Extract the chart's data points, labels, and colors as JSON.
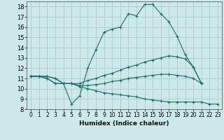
{
  "title": "",
  "xlabel": "Humidex (Indice chaleur)",
  "ylabel": "",
  "xlim": [
    -0.5,
    23.5
  ],
  "ylim": [
    8,
    18.5
  ],
  "xticks": [
    0,
    1,
    2,
    3,
    4,
    5,
    6,
    7,
    8,
    9,
    10,
    11,
    12,
    13,
    14,
    15,
    16,
    17,
    18,
    19,
    20,
    21,
    22,
    23
  ],
  "yticks": [
    8,
    9,
    10,
    11,
    12,
    13,
    14,
    15,
    16,
    17,
    18
  ],
  "background_color": "#cce8e8",
  "grid_color": "#aacccc",
  "line_color": "#1a6b6b",
  "lines": [
    {
      "x": [
        0,
        1,
        2,
        3,
        4,
        5,
        6,
        7,
        8,
        9,
        10,
        11,
        12,
        13,
        14,
        15,
        16,
        17,
        18,
        19,
        20,
        21
      ],
      "y": [
        11.2,
        11.2,
        11.2,
        11.0,
        10.5,
        8.5,
        9.3,
        12.0,
        13.8,
        15.5,
        15.8,
        16.0,
        17.3,
        17.1,
        18.2,
        18.2,
        17.3,
        16.5,
        15.1,
        13.3,
        12.1,
        10.5
      ]
    },
    {
      "x": [
        0,
        1,
        2,
        3,
        4,
        5,
        6,
        7,
        8,
        9,
        10,
        11,
        12,
        13,
        14,
        15,
        16,
        17,
        18,
        19,
        20,
        21,
        22,
        23
      ],
      "y": [
        11.2,
        11.2,
        11.2,
        11.0,
        10.5,
        10.5,
        10.5,
        10.8,
        11.0,
        11.3,
        11.5,
        11.8,
        12.1,
        12.3,
        12.6,
        12.8,
        13.0,
        13.2,
        13.1,
        12.9,
        12.1,
        10.5,
        null,
        null
      ]
    },
    {
      "x": [
        0,
        1,
        2,
        3,
        4,
        5,
        6,
        7,
        8,
        9,
        10,
        11,
        12,
        13,
        14,
        15,
        16,
        17,
        18,
        19,
        20,
        21,
        22,
        23
      ],
      "y": [
        11.2,
        11.2,
        11.0,
        10.5,
        10.5,
        10.5,
        10.3,
        10.3,
        10.4,
        10.5,
        10.7,
        10.8,
        11.0,
        11.1,
        11.2,
        11.3,
        11.4,
        11.4,
        11.3,
        11.2,
        11.0,
        10.5,
        null,
        null
      ]
    },
    {
      "x": [
        0,
        1,
        2,
        3,
        4,
        5,
        6,
        7,
        8,
        9,
        10,
        11,
        12,
        13,
        14,
        15,
        16,
        17,
        18,
        19,
        20,
        21,
        22,
        23
      ],
      "y": [
        11.2,
        11.2,
        11.0,
        10.5,
        10.5,
        10.5,
        10.2,
        10.0,
        9.8,
        9.6,
        9.5,
        9.4,
        9.3,
        9.2,
        9.0,
        8.9,
        8.8,
        8.7,
        8.7,
        8.7,
        8.7,
        8.7,
        8.5,
        8.5
      ]
    }
  ]
}
